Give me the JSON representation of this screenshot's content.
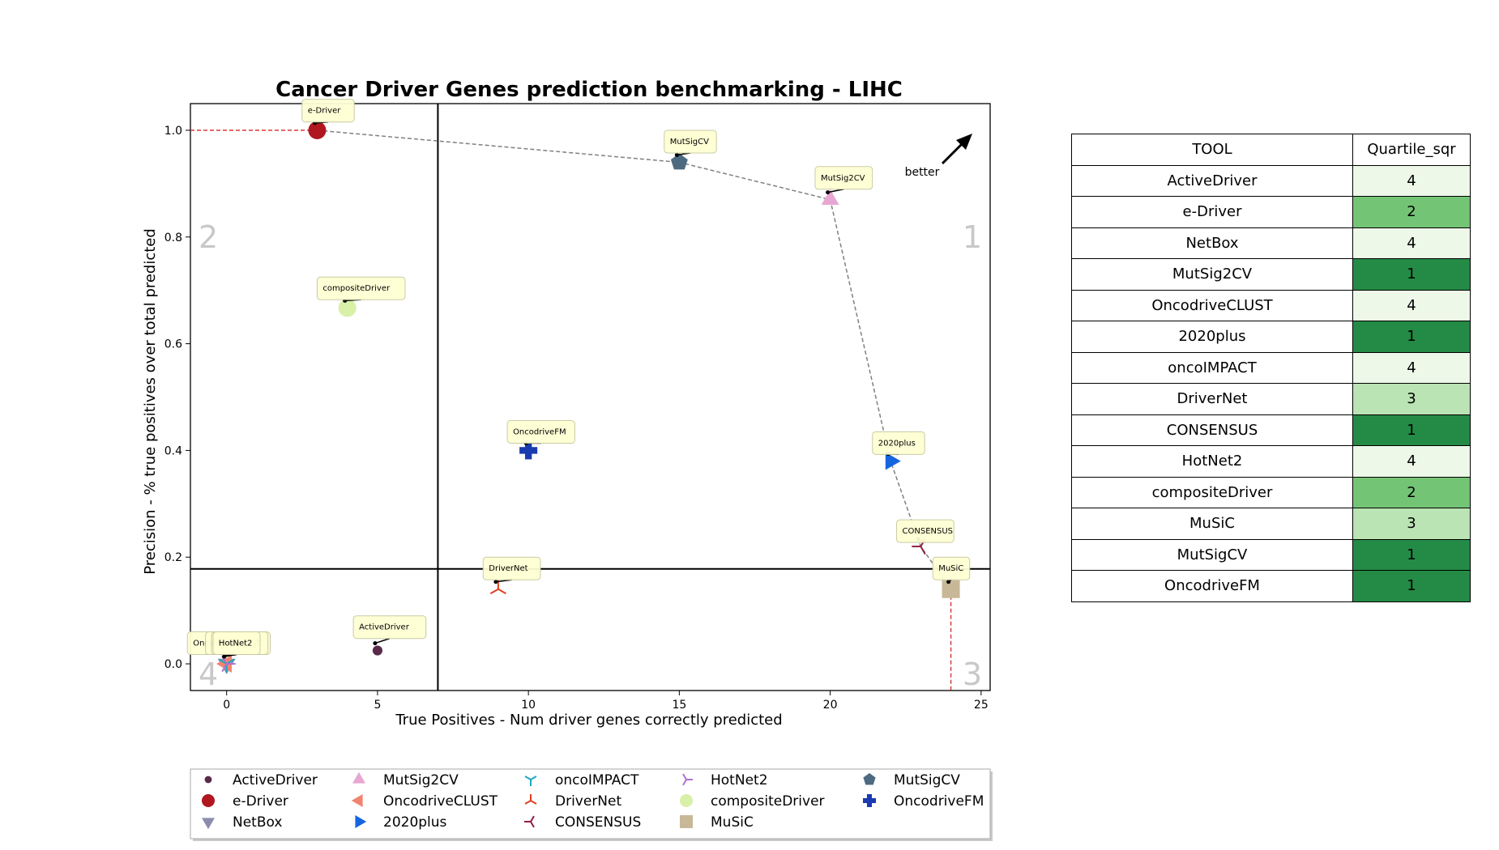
{
  "chart_data": {
    "type": "scatter",
    "title": "Cancer Driver Genes prediction benchmarking - LIHC",
    "xlabel": "True Positives - Num driver genes correctly predicted",
    "ylabel": "Precision - % true positives over total predicted",
    "xlim": [
      -1.2,
      25.3
    ],
    "ylim": [
      -0.05,
      1.05
    ],
    "xticks": [
      0,
      5,
      10,
      15,
      20,
      25
    ],
    "yticks": [
      0.0,
      0.2,
      0.4,
      0.6,
      0.8,
      1.0
    ],
    "quartile_lines": {
      "x": 7,
      "y": 0.178
    },
    "quadrant_labels": [
      "1",
      "2",
      "3",
      "4"
    ],
    "better_label": "better",
    "legend_placement": "bottom",
    "points": [
      {
        "name": "ActiveDriver",
        "x": 5,
        "y": 0.025,
        "color": "#5a2a4a",
        "marker": "circle-small"
      },
      {
        "name": "e-Driver",
        "x": 3,
        "y": 1.0,
        "color": "#b0171f",
        "marker": "circle"
      },
      {
        "name": "NetBox",
        "x": 0,
        "y": 0.0,
        "color": "#8c8cb0",
        "marker": "triangle-down"
      },
      {
        "name": "MutSig2CV",
        "x": 20,
        "y": 0.87,
        "color": "#e8a6d2",
        "marker": "triangle-up"
      },
      {
        "name": "OncodriveCLUST",
        "x": 0,
        "y": 0.0,
        "color": "#f08470",
        "marker": "triangle-left"
      },
      {
        "name": "2020plus",
        "x": 22,
        "y": 0.38,
        "color": "#1565e0",
        "marker": "triangle-right"
      },
      {
        "name": "oncoIMPACT",
        "x": 0,
        "y": 0.0,
        "color": "#1aa8c0",
        "marker": "tri-down"
      },
      {
        "name": "DriverNet",
        "x": 9,
        "y": 0.14,
        "color": "#e04020",
        "marker": "tri-up"
      },
      {
        "name": "CONSENSUS",
        "x": 23,
        "y": 0.22,
        "color": "#902040",
        "marker": "tri-left"
      },
      {
        "name": "HotNet2",
        "x": 0,
        "y": 0.0,
        "color": "#b070d0",
        "marker": "tri-right"
      },
      {
        "name": "compositeDriver",
        "x": 4,
        "y": 0.667,
        "color": "#d8f0a8",
        "marker": "circle"
      },
      {
        "name": "MuSiC",
        "x": 24,
        "y": 0.14,
        "color": "#c8b898",
        "marker": "square"
      },
      {
        "name": "MutSigCV",
        "x": 15,
        "y": 0.94,
        "color": "#4e6a80",
        "marker": "pentagon"
      },
      {
        "name": "OncodriveFM",
        "x": 10,
        "y": 0.4,
        "color": "#1a3ab0",
        "marker": "plus"
      }
    ],
    "pareto_frontier": [
      [
        3,
        1.0
      ],
      [
        15,
        0.94
      ],
      [
        20,
        0.87
      ],
      [
        22,
        0.38
      ],
      [
        23,
        0.22
      ],
      [
        24,
        0.14
      ]
    ],
    "annotations": [
      {
        "text": "e-Driver",
        "at": [
          3,
          1.0
        ],
        "box": [
          2.5,
          1.058
        ]
      },
      {
        "text": "MutSigCV",
        "at": [
          15,
          0.94
        ],
        "box": [
          14.5,
          1.0
        ]
      },
      {
        "text": "MutSig2CV",
        "at": [
          20,
          0.87
        ],
        "box": [
          19.5,
          0.932
        ]
      },
      {
        "text": "compositeDriver",
        "at": [
          4,
          0.667
        ],
        "box": [
          3.0,
          0.725
        ]
      },
      {
        "text": "OncodriveFM",
        "at": [
          10,
          0.4
        ],
        "box": [
          9.3,
          0.456
        ]
      },
      {
        "text": "2020plus",
        "at": [
          22,
          0.38
        ],
        "box": [
          21.4,
          0.435
        ]
      },
      {
        "text": "CONSENSUS",
        "at": [
          23,
          0.22
        ],
        "box": [
          22.2,
          0.27
        ]
      },
      {
        "text": "MuSiC",
        "at": [
          24,
          0.14
        ],
        "box": [
          23.4,
          0.2
        ]
      },
      {
        "text": "DriverNet",
        "at": [
          9,
          0.14
        ],
        "box": [
          8.5,
          0.2
        ]
      },
      {
        "text": "ActiveDriver",
        "at": [
          5,
          0.025
        ],
        "box": [
          4.2,
          0.09
        ]
      },
      {
        "text": "OncodriveCLUST",
        "at": [
          0,
          0.0
        ],
        "box": [
          -1.3,
          0.06
        ]
      },
      {
        "text": "oncoIMPACT",
        "at": [
          0,
          0.0
        ],
        "box": [
          -0.7,
          0.06
        ]
      },
      {
        "text": "NetBox",
        "at": [
          0,
          0.0
        ],
        "box": [
          -0.5,
          0.06
        ]
      },
      {
        "text": "HotNet2",
        "at": [
          0,
          0.0
        ],
        "box": [
          -0.45,
          0.06
        ]
      }
    ],
    "table": {
      "headers": [
        "TOOL",
        "Quartile_sqr"
      ],
      "rows": [
        {
          "tool": "ActiveDriver",
          "quartile": "4"
        },
        {
          "tool": "e-Driver",
          "quartile": "2"
        },
        {
          "tool": "NetBox",
          "quartile": "4"
        },
        {
          "tool": "MutSig2CV",
          "quartile": "1"
        },
        {
          "tool": "OncodriveCLUST",
          "quartile": "4"
        },
        {
          "tool": "2020plus",
          "quartile": "1"
        },
        {
          "tool": "oncoIMPACT",
          "quartile": "4"
        },
        {
          "tool": "DriverNet",
          "quartile": "3"
        },
        {
          "tool": "CONSENSUS",
          "quartile": "1"
        },
        {
          "tool": "HotNet2",
          "quartile": "4"
        },
        {
          "tool": "compositeDriver",
          "quartile": "2"
        },
        {
          "tool": "MuSiC",
          "quartile": "3"
        },
        {
          "tool": "MutSigCV",
          "quartile": "1"
        },
        {
          "tool": "OncodriveFM",
          "quartile": "1"
        }
      ],
      "quartile_colors": {
        "1": "#238b45",
        "2": "#74c476",
        "3": "#bae4b3",
        "4": "#edf8e9"
      }
    }
  }
}
